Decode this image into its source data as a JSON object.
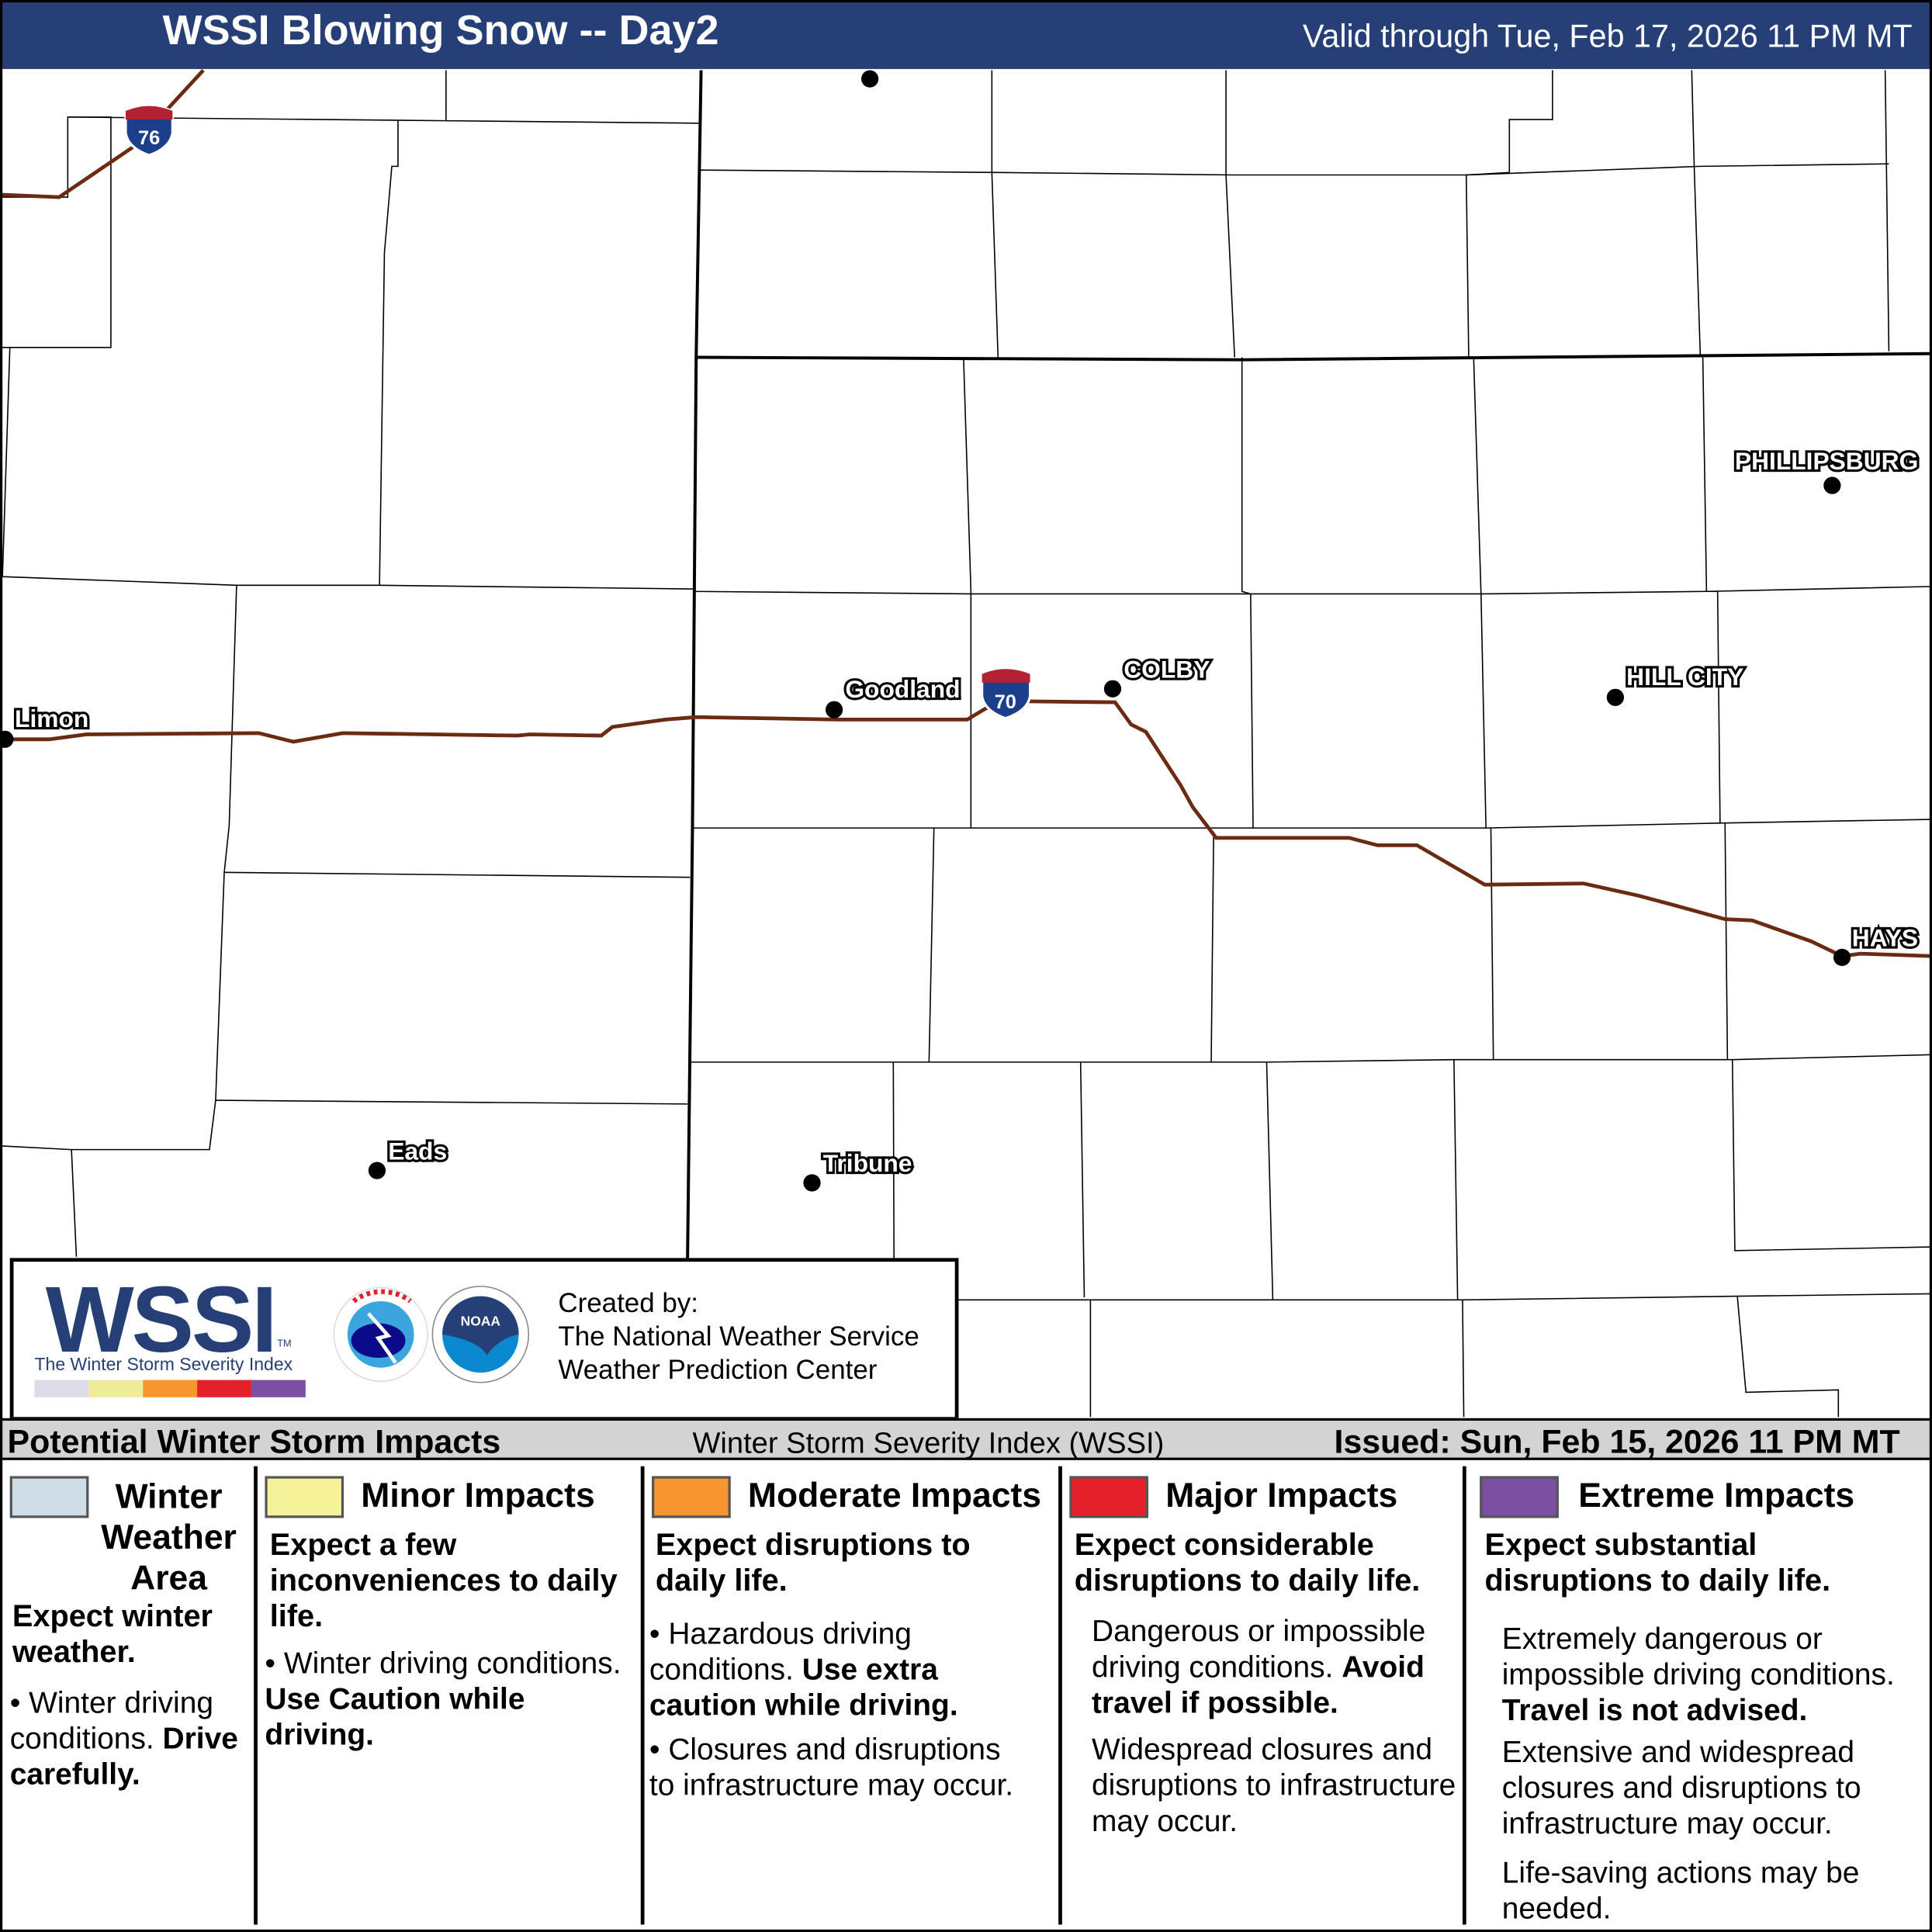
{
  "header": {
    "title": "WSSI Blowing Snow -- Day2",
    "valid": "Valid through Tue, Feb 17, 2026 11 PM MT"
  },
  "map": {
    "cities": [
      "Limon",
      "Goodland",
      "COLBY",
      "HILL CITY",
      "PHILLIPSBURG",
      "HAYS",
      "Eads",
      "Tribune"
    ],
    "highways": [
      "76",
      "70"
    ],
    "colors": {
      "highway": "#6b2a12",
      "shield_blue": "#1c3f8c",
      "shield_red": "#b22234"
    }
  },
  "logo": {
    "wssi": "WSSI",
    "tm": "TM",
    "subtitle": "The Winter Storm Severity Index",
    "created": [
      "Created by:",
      "The National Weather Service",
      "Weather Prediction Center"
    ]
  },
  "band": {
    "left": "Potential Winter Storm Impacts",
    "center": "Winter Storm Severity Index (WSSI)",
    "right": "Issued: Sun, Feb 15, 2026 11 PM MT"
  },
  "categories": [
    {
      "title": "Winter Weather Area",
      "color": "#cfdde6",
      "headline": "Expect winter weather.",
      "bullet1": "Winter driving conditions.",
      "bullet1_bold": "Drive carefully."
    },
    {
      "title": "Minor Impacts",
      "color": "#f6f29a",
      "headline": "Expect a few inconveniences to daily life.",
      "bullet1": "Winter driving conditions.",
      "bullet1_bold": "Use Caution while driving."
    },
    {
      "title": "Moderate Impacts",
      "color": "#f7962f",
      "headline": "Expect disruptions to daily life.",
      "bullet1": "Hazardous driving conditions.",
      "bullet1_bold": "Use extra caution while driving.",
      "bullet2": "Closures and disruptions to infrastructure may occur."
    },
    {
      "title": "Major Impacts",
      "color": "#e4212b",
      "headline": "Expect considerable disruptions to daily life.",
      "bullet1": "Dangerous or impossible driving conditions.",
      "bullet1_bold": "Avoid travel if possible.",
      "bullet2": "Widespread closures and disruptions to infrastructure may occur."
    },
    {
      "title": "Extreme Impacts",
      "color": "#7b4fa1",
      "headline": "Expect substantial disruptions to daily life.",
      "bullet1": "Extremely dangerous or impossible driving conditions.",
      "bullet1_bold": "Travel is not advised.",
      "bullet2": "Extensive and widespread closures and disruptions to infrastructure may occur.",
      "bullet3": "Life-saving actions may be needed."
    }
  ],
  "scale_colors": [
    "#dcdce8",
    "#eeec96",
    "#f7962f",
    "#e4212b",
    "#7b4fa1"
  ]
}
